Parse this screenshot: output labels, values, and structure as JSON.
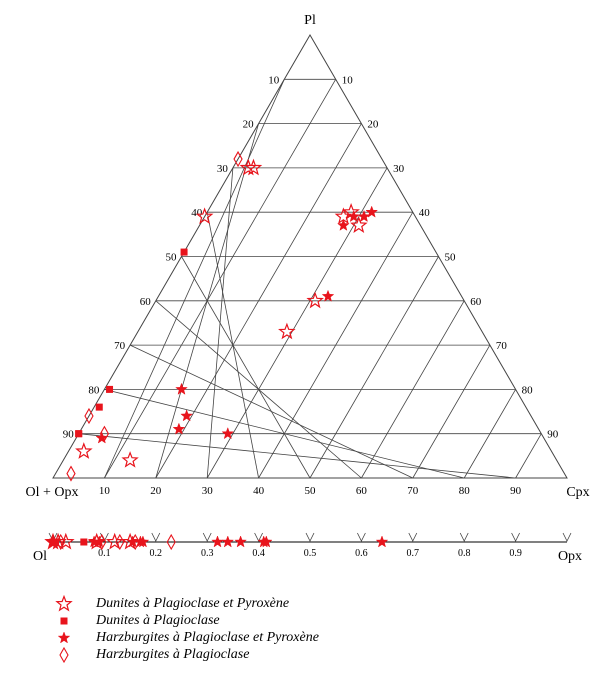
{
  "chart_data": [
    {
      "type": "ternary-scatter",
      "apex_labels": {
        "top": "Pl",
        "left": "Ol + Opx",
        "right": "Cpx"
      },
      "ticks": {
        "left_edge": [
          "10",
          "20",
          "30",
          "40",
          "50",
          "60",
          "70",
          "80",
          "90"
        ],
        "right_edge": [
          "90",
          "80",
          "70",
          "60",
          "50",
          "40",
          "30",
          "20",
          "10"
        ],
        "bottom_edge": [
          "10",
          "20",
          "30",
          "40",
          "50",
          "60",
          "70",
          "80",
          "90"
        ]
      },
      "grid": true,
      "series": [
        {
          "name": "Dunites à Plagioclase et Pyroxène",
          "marker": "star-open",
          "color": "#e8141c",
          "points": [
            {
              "Pl": 59,
              "Cpx": 0
            },
            {
              "Pl": 6,
              "Cpx": 3
            },
            {
              "Pl": 4,
              "Cpx": 13
            },
            {
              "Pl": 70,
              "Cpx": 4
            },
            {
              "Pl": 70,
              "Cpx": 3
            },
            {
              "Pl": 33,
              "Cpx": 29
            },
            {
              "Pl": 40,
              "Cpx": 31
            },
            {
              "Pl": 60,
              "Cpx": 28
            },
            {
              "Pl": 57,
              "Cpx": 31
            },
            {
              "Pl": 59,
              "Cpx": 27
            }
          ]
        },
        {
          "name": "Dunites à Plagioclase",
          "marker": "square",
          "color": "#e8141c",
          "points": [
            {
              "Pl": 51,
              "Cpx": 0
            },
            {
              "Pl": 20,
              "Cpx": 1
            },
            {
              "Pl": 16,
              "Cpx": 1
            },
            {
              "Pl": 10,
              "Cpx": 0
            },
            {
              "Pl": 10,
              "Cpx": 0
            }
          ]
        },
        {
          "name": "Harzburgites à Plagioclase et Pyroxène",
          "marker": "star",
          "color": "#e8141c",
          "points": [
            {
              "Pl": 57,
              "Cpx": 28
            },
            {
              "Pl": 59,
              "Cpx": 29
            },
            {
              "Pl": 59,
              "Cpx": 31
            },
            {
              "Pl": 60,
              "Cpx": 32
            },
            {
              "Pl": 41,
              "Cpx": 33
            },
            {
              "Pl": 20,
              "Cpx": 15
            },
            {
              "Pl": 14,
              "Cpx": 19
            },
            {
              "Pl": 11,
              "Cpx": 19
            },
            {
              "Pl": 10,
              "Cpx": 29
            },
            {
              "Pl": 9,
              "Cpx": 5
            }
          ]
        },
        {
          "name": "Harzburgites à Plagioclase",
          "marker": "diamond-open",
          "color": "#e8141c",
          "points": [
            {
              "Pl": 72,
              "Cpx": 0
            },
            {
              "Pl": 14,
              "Cpx": 0
            },
            {
              "Pl": 10,
              "Cpx": 5
            },
            {
              "Pl": 1,
              "Cpx": 3
            }
          ]
        }
      ]
    },
    {
      "type": "scatter",
      "axis_left_label": "Ol",
      "axis_right_label": "Opx",
      "xlim": [
        0,
        1
      ],
      "tick_labels": [
        "0.1",
        "0.2",
        "0.3",
        "0.4",
        "0.5",
        "0.6",
        "0.7",
        "0.8",
        "0.9"
      ],
      "series": [
        {
          "name": "Dunites à Plagioclase et Pyroxène",
          "marker": "star-open",
          "x": [
            0.0,
            0.01,
            0.025,
            0.085,
            0.12,
            0.15
          ]
        },
        {
          "name": "Dunites à Plagioclase",
          "marker": "square",
          "x": [
            0.0,
            0.005,
            0.06
          ]
        },
        {
          "name": "Harzburgites à Plagioclase et Pyroxène",
          "marker": "star",
          "x": [
            0.0,
            0.08,
            0.09,
            0.155,
            0.17,
            0.175,
            0.32,
            0.34,
            0.365,
            0.41,
            0.415,
            0.64
          ]
        },
        {
          "name": "Harzburgites à Plagioclase",
          "marker": "diamond-open",
          "x": [
            0.015,
            0.095,
            0.13,
            0.16,
            0.23
          ]
        }
      ]
    }
  ],
  "legend": [
    {
      "label": "Dunites à Plagioclase et Pyroxène",
      "marker": "star-open"
    },
    {
      "label": "Dunites à Plagioclase",
      "marker": "square"
    },
    {
      "label": "Harzburgites à Plagioclase et Pyroxène",
      "marker": "star"
    },
    {
      "label": "Harzburgites à Plagioclase",
      "marker": "diamond-open"
    }
  ]
}
